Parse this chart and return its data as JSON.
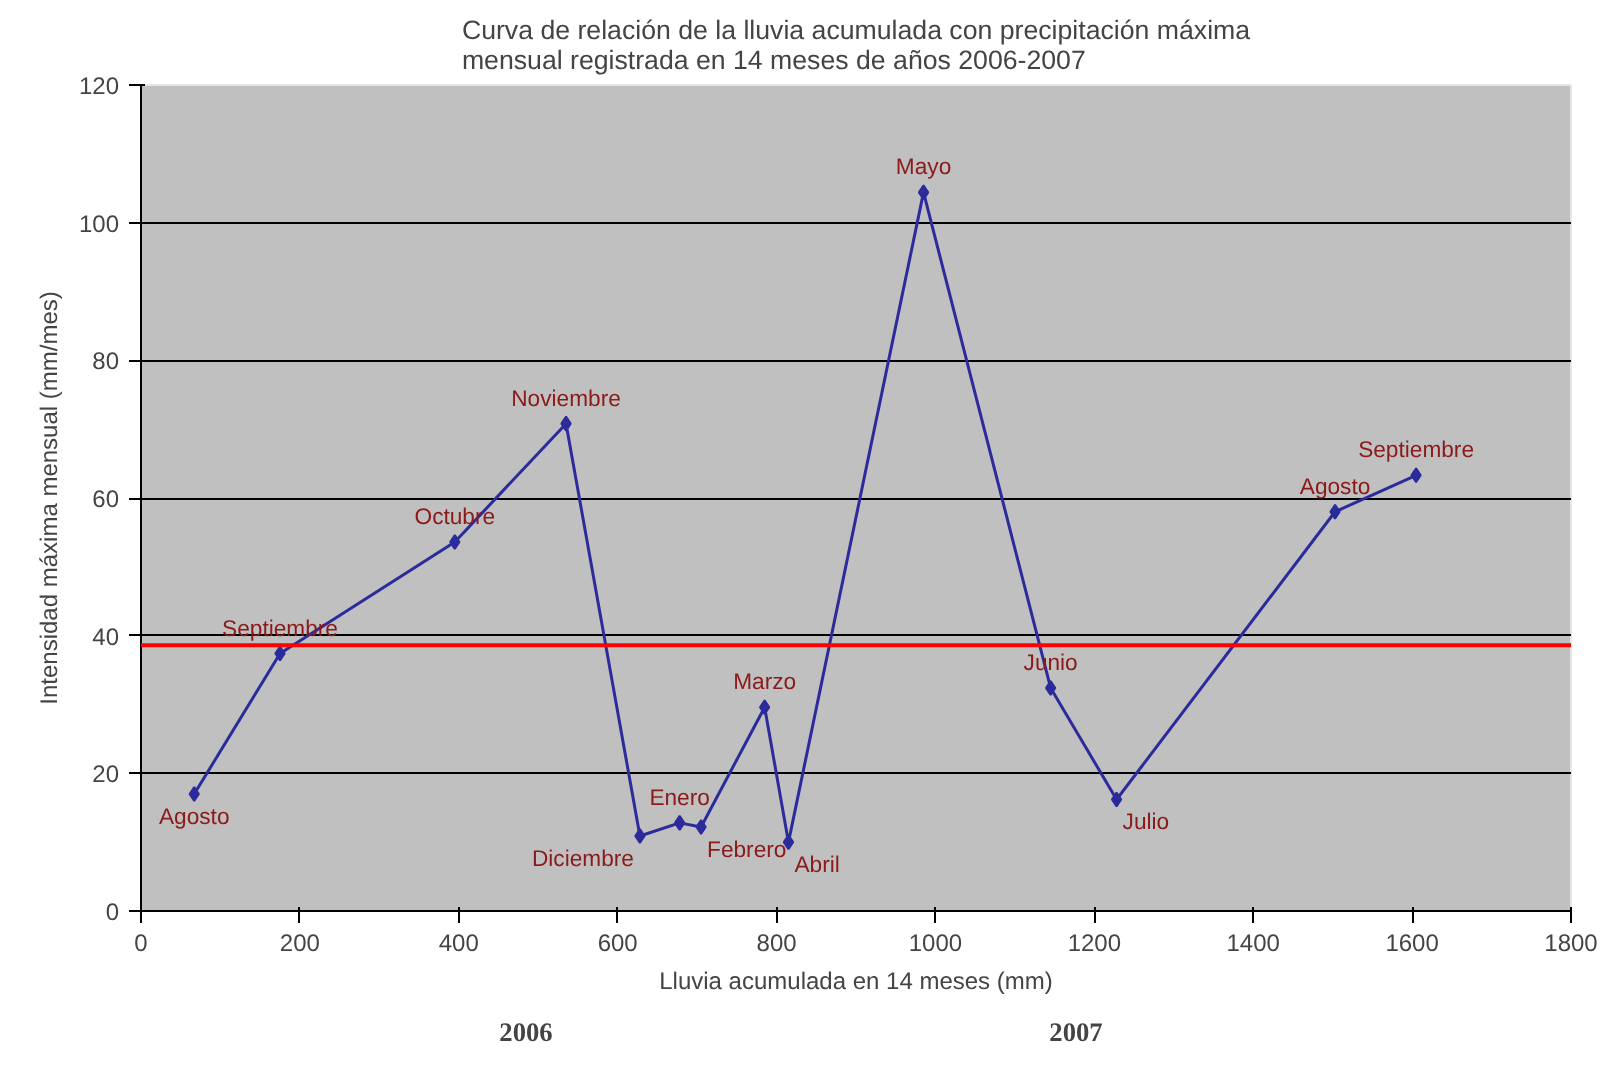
{
  "chart_data": {
    "type": "line",
    "title": "Curva de relación de la lluvia acumulada con precipitación máxima\nmensual registrada en 14 meses de  años 2006-2007",
    "xlabel": "Lluvia acumulada en 14 meses (mm)",
    "ylabel": "Intensidad máxima mensual (mm/mes)",
    "x": [
      67,
      175,
      395,
      535,
      628,
      678,
      705,
      785,
      815,
      985,
      1145,
      1228,
      1503,
      1605
    ],
    "series": [
      {
        "color": "#2b2b9b",
        "values": [
          17,
          37.4,
          53.6,
          70.8,
          10.9,
          12.8,
          12.2,
          29.6,
          10,
          104.4,
          32.4,
          16.2,
          58,
          63.3
        ]
      }
    ],
    "xlim": [
      0,
      1800
    ],
    "xticks": [
      0,
      200,
      400,
      600,
      800,
      1000,
      1200,
      1400,
      1600,
      1800
    ],
    "ylim": [
      0,
      120
    ],
    "yticks": [
      0,
      20,
      40,
      60,
      80,
      100,
      120
    ],
    "grid": "y",
    "marker": "diamond",
    "line_style": "solid",
    "ref_lines": [
      {
        "axis": "y",
        "value": 38.6,
        "color": "#ff0000"
      }
    ],
    "annotations": [
      {
        "text": "Agosto",
        "x": 67,
        "y": 17
      },
      {
        "text": "Septiembre",
        "x": 175,
        "y": 37.4
      },
      {
        "text": "Octubre",
        "x": 395,
        "y": 53.6
      },
      {
        "text": "Noviembre",
        "x": 535,
        "y": 70.8
      },
      {
        "text": "Diciembre",
        "x": 628,
        "y": 10.9
      },
      {
        "text": "Enero",
        "x": 678,
        "y": 12.8
      },
      {
        "text": "Febrero",
        "x": 705,
        "y": 12.2
      },
      {
        "text": "Marzo",
        "x": 785,
        "y": 29.6
      },
      {
        "text": "Abril",
        "x": 815,
        "y": 10
      },
      {
        "text": "Mayo",
        "x": 985,
        "y": 104.4
      },
      {
        "text": "Junio",
        "x": 1145,
        "y": 32.4
      },
      {
        "text": "Julio",
        "x": 1228,
        "y": 16.2
      },
      {
        "text": "Agosto",
        "x": 1503,
        "y": 58
      },
      {
        "text": "Septiembre",
        "x": 1605,
        "y": 63.3
      },
      "2006",
      "2007"
    ]
  }
}
